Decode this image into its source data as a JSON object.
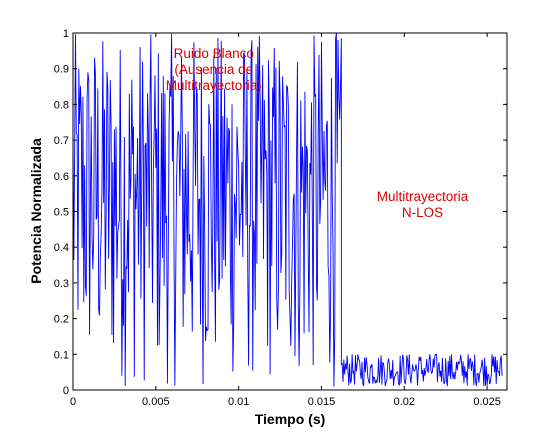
{
  "chart_data": {
    "type": "line",
    "title": "",
    "xlabel": "Tiempo (s)",
    "ylabel": "Potencia Normalizada",
    "xlim": [
      0,
      0.0262
    ],
    "ylim": [
      0,
      1
    ],
    "x_ticks": [
      0,
      0.005,
      0.01,
      0.015,
      0.02,
      0.025
    ],
    "x_tick_labels": [
      "0",
      "0.005",
      "0.01",
      "0.015",
      "0.02",
      "0.025"
    ],
    "y_ticks": [
      0,
      0.1,
      0.2,
      0.3,
      0.4,
      0.5,
      0.6,
      0.7,
      0.8,
      0.9,
      1
    ],
    "y_tick_labels": [
      "0",
      "0.1",
      "0.2",
      "0.3",
      "0.4",
      "0.5",
      "0.6",
      "0.7",
      "0.8",
      "0.9",
      "1"
    ],
    "grid": false,
    "line_color": "#0000ff",
    "annotation_color": "#e00000",
    "segments": [
      {
        "x_range": [
          0,
          0.0162
        ],
        "approx_value_range": [
          0,
          1
        ],
        "description_points": "dense random fluctuation"
      },
      {
        "x_range": [
          0.0162,
          0.0259
        ],
        "approx_value_range": [
          0,
          0.1
        ]
      }
    ],
    "annotations": [
      {
        "lines": [
          "Ruido Blanco",
          "(Ausencia de",
          "Multitrayectoria)"
        ],
        "x": 0.0085,
        "y": 0.93
      },
      {
        "lines": [
          "Multitrayectoria",
          "N-LOS"
        ],
        "x": 0.0211,
        "y": 0.53
      }
    ]
  }
}
